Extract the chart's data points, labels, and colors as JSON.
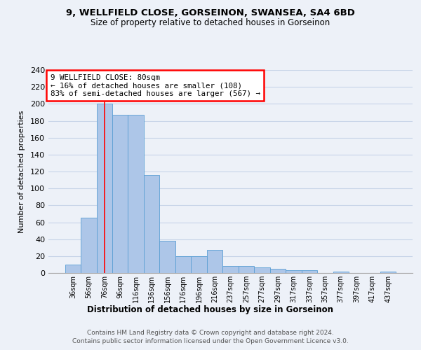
{
  "title1": "9, WELLFIELD CLOSE, GORSEINON, SWANSEA, SA4 6BD",
  "title2": "Size of property relative to detached houses in Gorseinon",
  "xlabel": "Distribution of detached houses by size in Gorseinon",
  "ylabel": "Number of detached properties",
  "footnote1": "Contains HM Land Registry data © Crown copyright and database right 2024.",
  "footnote2": "Contains public sector information licensed under the Open Government Licence v3.0.",
  "categories": [
    "36sqm",
    "56sqm",
    "76sqm",
    "96sqm",
    "116sqm",
    "136sqm",
    "156sqm",
    "176sqm",
    "196sqm",
    "216sqm",
    "237sqm",
    "257sqm",
    "277sqm",
    "297sqm",
    "317sqm",
    "337sqm",
    "357sqm",
    "377sqm",
    "397sqm",
    "417sqm",
    "437sqm"
  ],
  "values": [
    10,
    65,
    200,
    187,
    187,
    116,
    38,
    20,
    20,
    27,
    8,
    8,
    7,
    5,
    3,
    3,
    0,
    2,
    0,
    0,
    2
  ],
  "bar_color": "#adc6e8",
  "bar_edge_color": "#5a9fd4",
  "annotation_text_line1": "9 WELLFIELD CLOSE: 80sqm",
  "annotation_text_line2": "← 16% of detached houses are smaller (108)",
  "annotation_text_line3": "83% of semi-detached houses are larger (567) →",
  "red_line_x": 2.0,
  "bg_color": "#edf1f8",
  "grid_color": "#c8d4e8",
  "ylim_max": 240,
  "yticks": [
    0,
    20,
    40,
    60,
    80,
    100,
    120,
    140,
    160,
    180,
    200,
    220,
    240
  ]
}
